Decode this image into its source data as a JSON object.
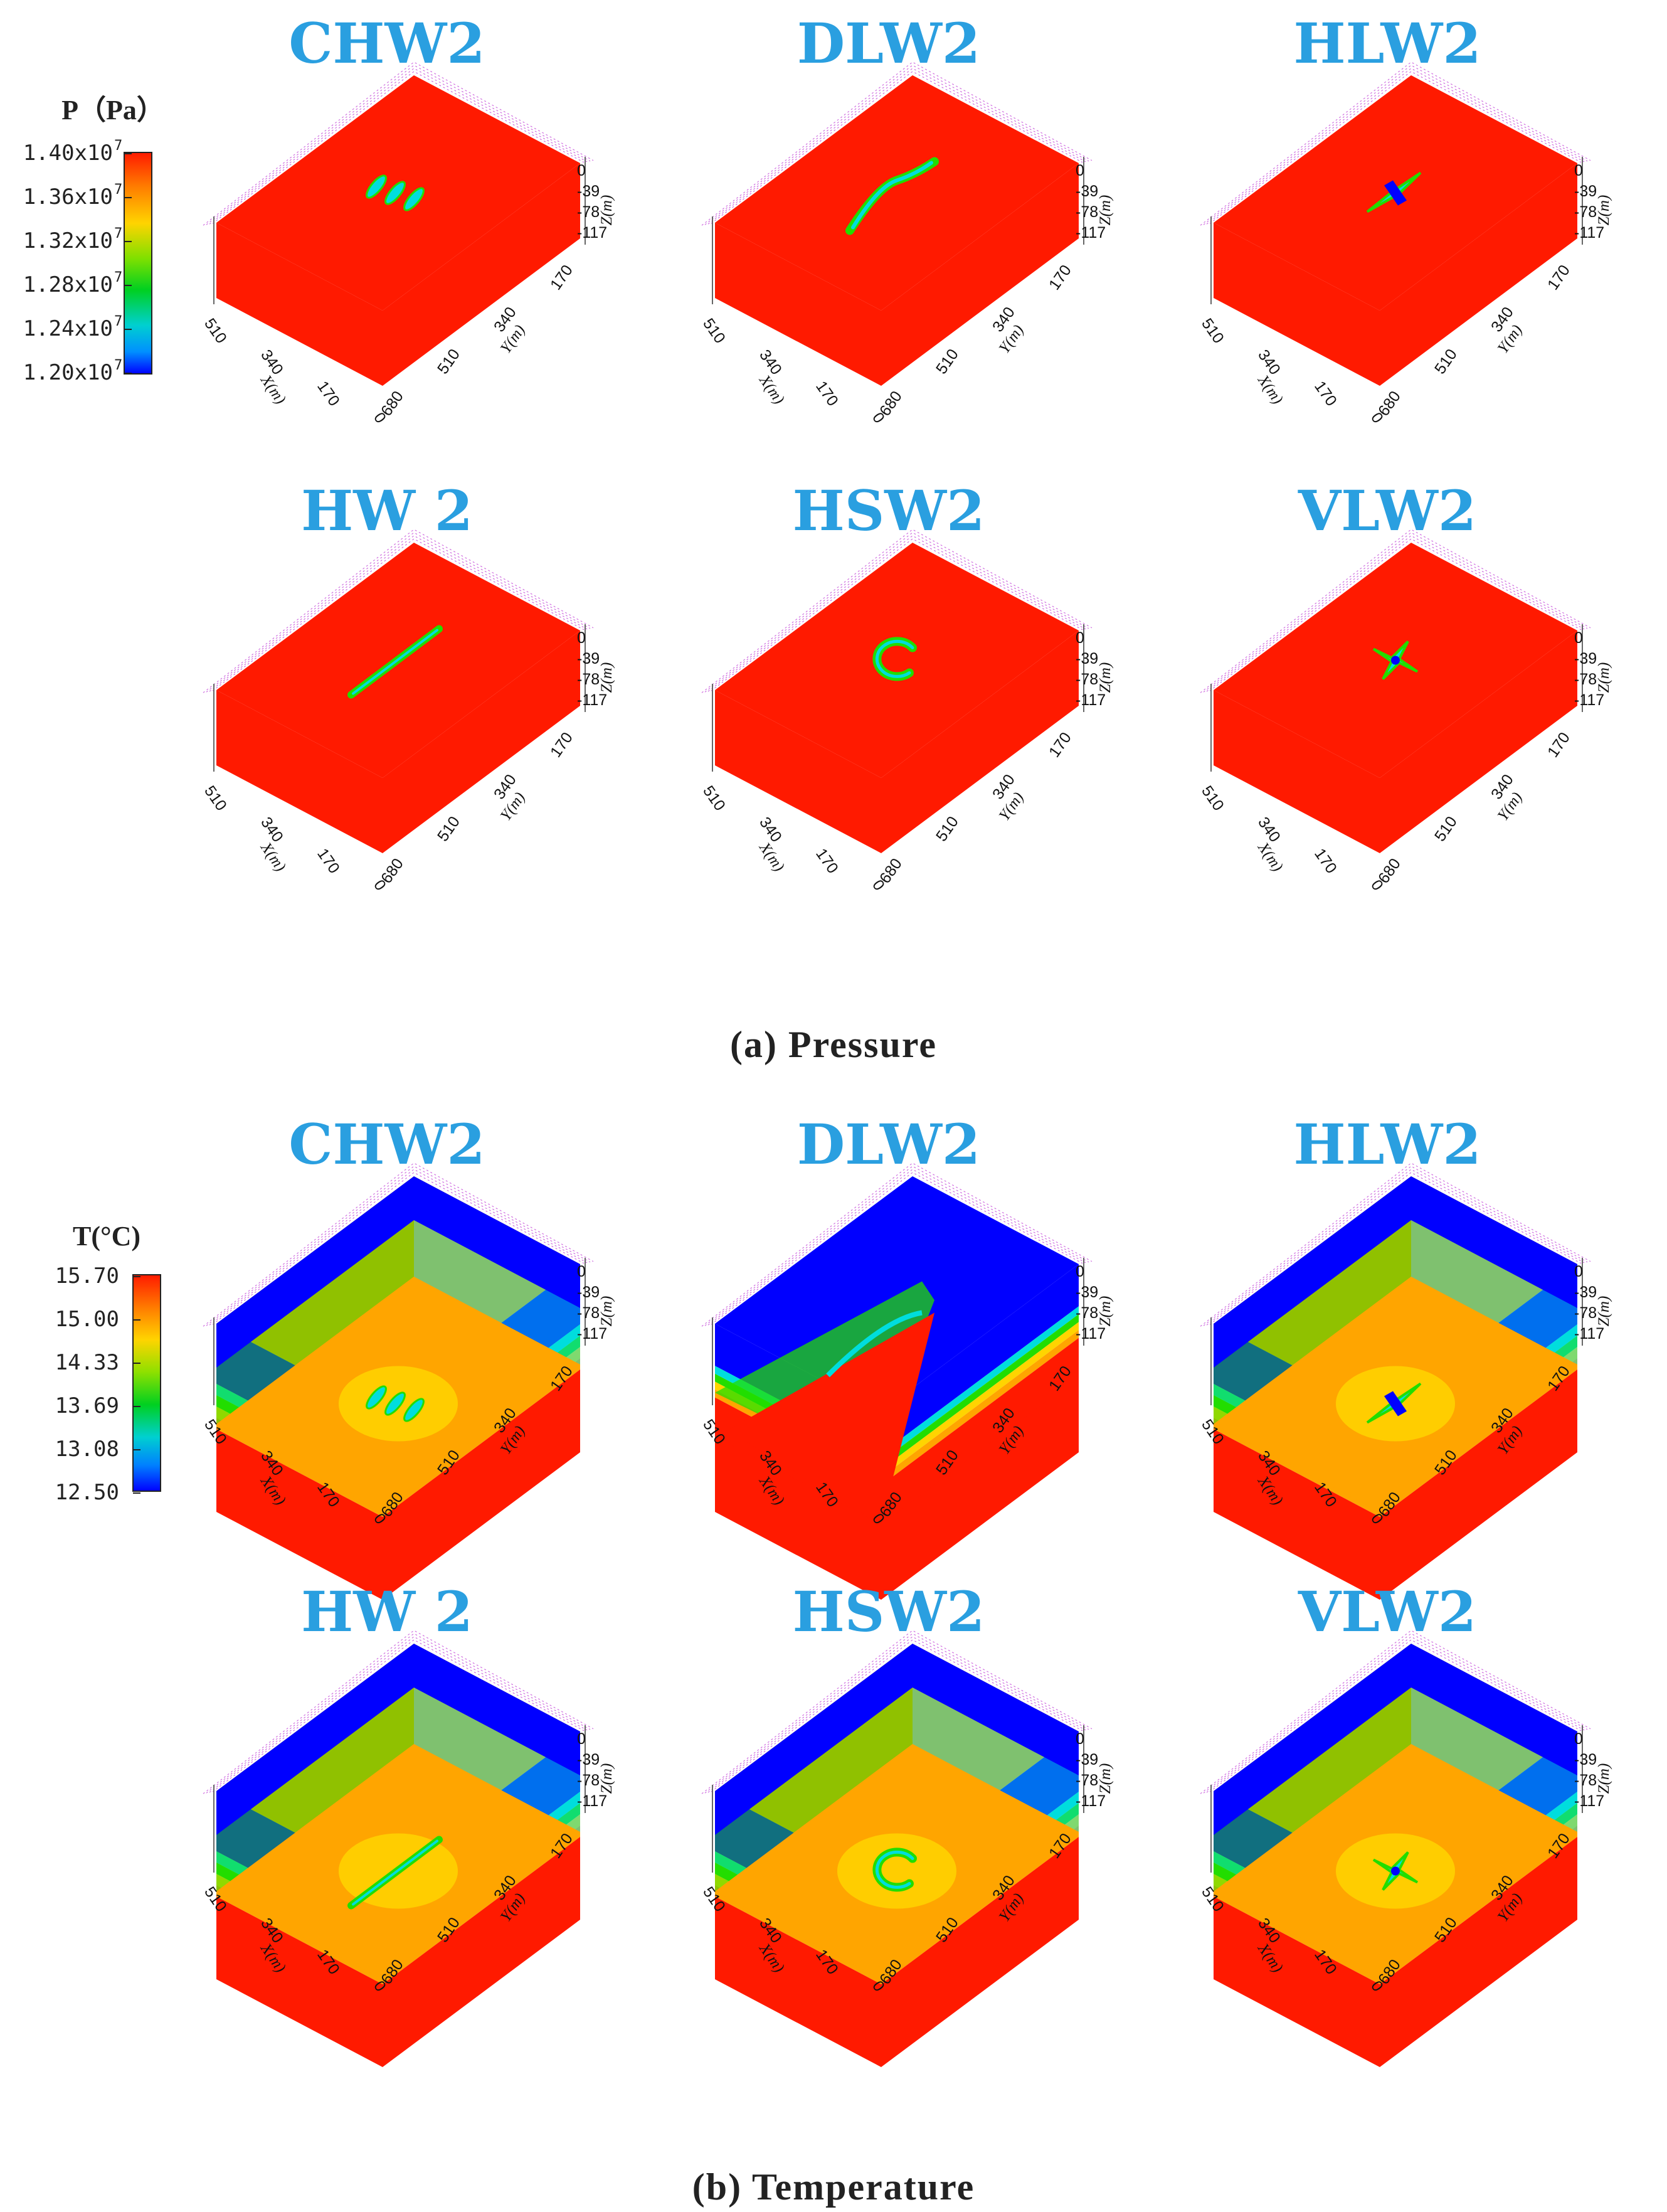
{
  "captions": {
    "pressure": "(a) Pressure",
    "temperature": "(b) Temperature"
  },
  "wells": [
    "CHW2",
    "DLW2",
    "HLW2",
    "HW 2",
    "HSW2",
    "VLW2"
  ],
  "colorbars": {
    "pressure": {
      "title": "P（Pa）",
      "ticks": [
        "1.40x10",
        "1.36x10",
        "1.32x10",
        "1.28x10",
        "1.24x10",
        "1.20x10"
      ],
      "exponent": "7"
    },
    "temperature": {
      "title": "T(°C)",
      "ticks": [
        "15.70",
        "15.00",
        "14.33",
        "13.69",
        "13.08",
        "12.50"
      ]
    }
  },
  "axes": {
    "x_ticks": [
      "510",
      "340",
      "170",
      "0"
    ],
    "y_ticks": [
      "680",
      "510",
      "340",
      "170"
    ],
    "z_ticks": [
      "0",
      "-39",
      "-78",
      "-117"
    ],
    "x_label": "X(m)",
    "y_label": "Y(m)",
    "z_label": "Z(m)"
  },
  "colors": {
    "title": "#2a9fe0",
    "high": "#ff1a00",
    "orange": "#ffa500",
    "low": "#0000ff",
    "yellow": "#ffd400",
    "green": "#22dd00",
    "cyan": "#00dddd",
    "text": "#222222"
  },
  "features": [
    "triple-ellipse",
    "curved-line",
    "star-diamond",
    "straight-line",
    "c-shape",
    "four-point-star"
  ],
  "temperature_blocks": [
    "layered",
    "l-step",
    "layered",
    "layered",
    "layered",
    "layered"
  ]
}
